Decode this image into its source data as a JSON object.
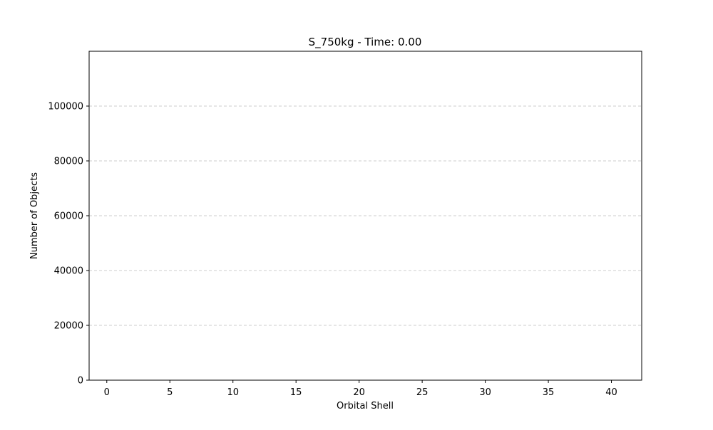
{
  "chart_data": {
    "type": "bar",
    "title": "S_750kg - Time: 0.00",
    "xlabel": "Orbital Shell",
    "ylabel": "Number of Objects",
    "x": [],
    "values": [],
    "xlim": [
      -1.4,
      42.4
    ],
    "ylim": [
      0,
      120000
    ],
    "xticks": [
      0,
      5,
      10,
      15,
      20,
      25,
      30,
      35,
      40
    ],
    "yticks": [
      0,
      20000,
      40000,
      60000,
      80000,
      100000
    ],
    "grid": "y-dashed",
    "legend": "none"
  }
}
